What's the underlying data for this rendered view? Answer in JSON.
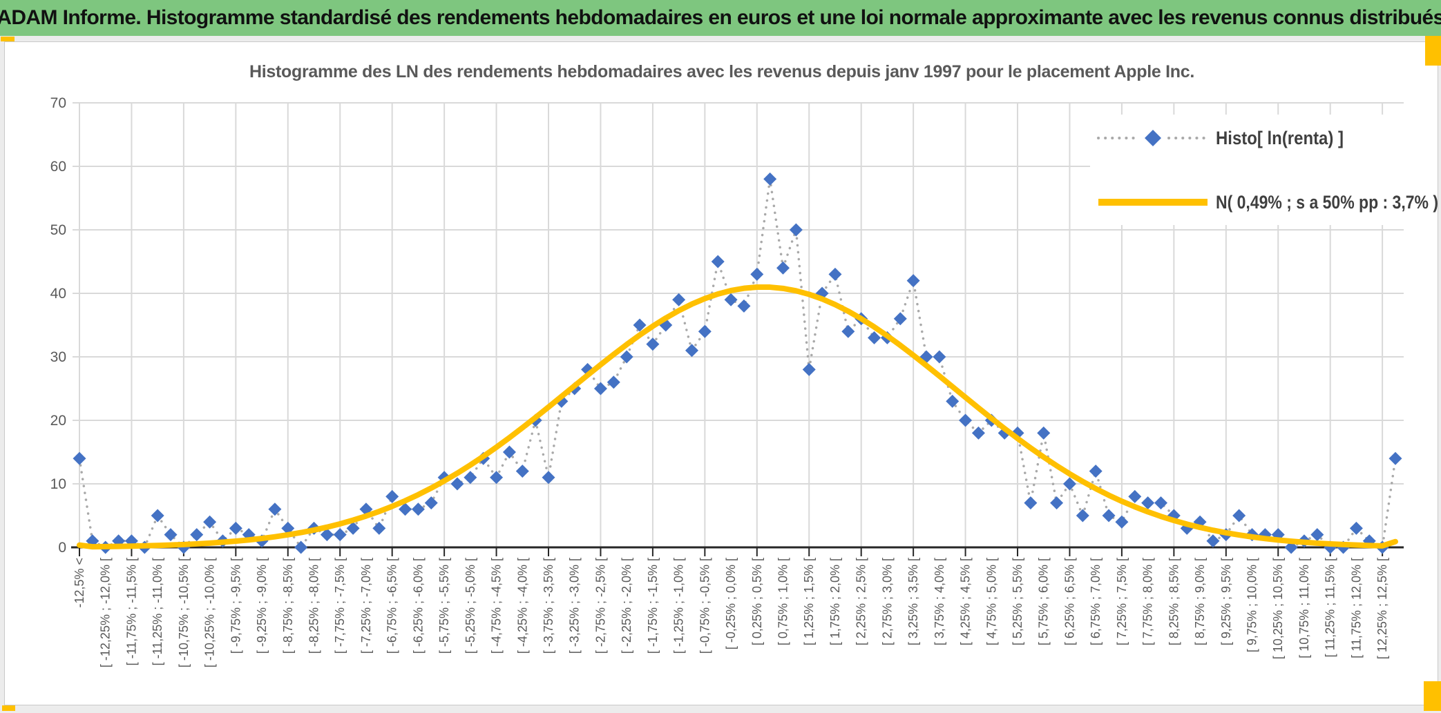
{
  "banner": {
    "text": "ADAM Informe. Histogramme standardisé des rendements hebdomadaires en euros et une loi normale approximante avec les revenus connus distribués"
  },
  "chart_title": "Histogramme des LN des rendements hebdomadaires avec les revenus depuis janv 1997 pour le placement Apple Inc.",
  "legend": {
    "position": "top-right",
    "items": [
      {
        "label": "Histo[ ln(renta) ]",
        "marker": "blue-diamond-dotted-line"
      },
      {
        "label": "N( 0,49% ; s a 50% pp : 3,7% )",
        "marker": "thick-gold-line"
      }
    ]
  },
  "colors": {
    "banner_bg": "#7EC67F",
    "banner_text": "#111111",
    "accent_yellow": "#FFC000",
    "histogram_marker": "#4472C4",
    "histogram_connector": "#A9A9A9",
    "normal_curve": "#FFC000",
    "gridline": "#D9D9D9",
    "axis": "#262626",
    "label_text": "#595959",
    "legend_text": "#3F3F3F",
    "sheet_bg": "#FFFFFF",
    "page_bg": "#ECECEC",
    "sheet_border": "#C9C9C9"
  },
  "chart_data": {
    "type": "line",
    "title": "Histogramme des LN des rendements hebdomadaires avec les revenus depuis janv 1997 pour le placement Apple Inc.",
    "grid": true,
    "legend_position": "top-right",
    "y_axis": {
      "ticks": [
        0,
        10,
        20,
        30,
        40,
        50,
        60,
        70
      ],
      "range": [
        0,
        70
      ]
    },
    "x_axis": {
      "bin_width_pct": 0.25,
      "n_categories": 102,
      "label_every_n_categories": 2,
      "tick_labels": [
        "-12,5% <",
        "[ -12,25% ; -12,0% [",
        "[ -11,75% ; -11,5% [",
        "[ -11,25% ; -11,0% [",
        "[ -10,75% ; -10,5% [",
        "[ -10,25% ; -10,0% [",
        "[ -9,75% ; -9,5% [",
        "[ -9,25% ; -9,0% [",
        "[ -8,75% ; -8,5% [",
        "[ -8,25% ; -8,0% [",
        "[ -7,75% ; -7,5% [",
        "[ -7,25% ; -7,0% [",
        "[ -6,75% ; -6,5% [",
        "[ -6,25% ; -6,0% [",
        "[ -5,75% ; -5,5% [",
        "[ -5,25% ; -5,0% [",
        "[ -4,75% ; -4,5% [",
        "[ -4,25% ; -4,0% [",
        "[ -3,75% ; -3,5% [",
        "[ -3,25% ; -3,0% [",
        "[ -2,75% ; -2,5% [",
        "[ -2,25% ; -2,0% [",
        "[ -1,75% ; -1,5% [",
        "[ -1,25% ; -1,0% [",
        "[ -0,75% ; -0,5% [",
        "[ -0,25% ; 0,0% [",
        "[ 0,25% ; 0,5% [",
        "[ 0,75% ; 1,0% [",
        "[ 1,25% ; 1,5% [",
        "[ 1,75% ; 2,0% [",
        "[ 2,25% ; 2,5% [",
        "[ 2,75% ; 3,0% [",
        "[ 3,25% ; 3,5% [",
        "[ 3,75% ; 4,0% [",
        "[ 4,25% ; 4,5% [",
        "[ 4,75% ; 5,0% [",
        "[ 5,25% ; 5,5% [",
        "[ 5,75% ; 6,0% [",
        "[ 6,25% ; 6,5% [",
        "[ 6,75% ; 7,0% [",
        "[ 7,25% ; 7,5% [",
        "[ 7,75% ; 8,0% [",
        "[ 8,25% ; 8,5% [",
        "[ 8,75% ; 9,0% [",
        "[ 9,25% ; 9,5% [",
        "[ 9,75% ; 10,0% [",
        "[ 10,25% ; 10,5% [",
        "[ 10,75% ; 11,0% [",
        "[ 11,25% ; 11,5% [",
        "[ 11,75% ; 12,0% [",
        "[ 12,25% ; 12,5% ["
      ]
    },
    "series": [
      {
        "name": "Histo[ ln(renta) ]",
        "type": "scatter-dotted",
        "values": [
          14,
          1,
          0,
          1,
          1,
          0,
          5,
          2,
          0,
          2,
          4,
          1,
          3,
          2,
          1,
          6,
          3,
          0,
          3,
          2,
          2,
          3,
          6,
          3,
          8,
          6,
          6,
          7,
          11,
          10,
          11,
          14,
          11,
          15,
          12,
          20,
          11,
          23,
          25,
          28,
          25,
          26,
          30,
          35,
          32,
          35,
          39,
          31,
          34,
          45,
          39,
          38,
          43,
          58,
          44,
          50,
          28,
          40,
          43,
          34,
          36,
          33,
          33,
          36,
          42,
          30,
          30,
          23,
          20,
          18,
          20,
          18,
          18,
          7,
          18,
          7,
          10,
          5,
          12,
          5,
          4,
          8,
          7,
          7,
          5,
          3,
          4,
          1,
          2,
          5,
          2,
          2,
          2,
          0,
          1,
          2,
          0,
          0,
          3,
          1,
          0,
          14
        ]
      },
      {
        "name": "N( 0,49% ; s a 50% pp : 3,7% )",
        "type": "smooth-line",
        "normal_params": {
          "mean_pct": 0.49,
          "sd_pct": 3.7,
          "peak_count": 41,
          "left_tail_count": 0.35,
          "right_tail_count": 0.9
        }
      }
    ]
  }
}
